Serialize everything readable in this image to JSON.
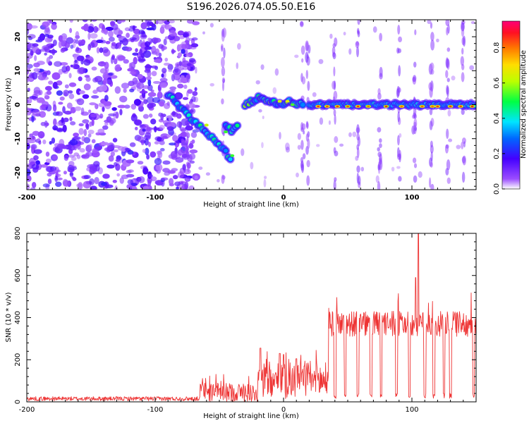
{
  "title": "S196.2026.074.05.50.E16",
  "chart_data": [
    {
      "type": "heatmap",
      "title": "S196.2026.074.05.50.E16",
      "xlabel": "Height of straight line (km)",
      "ylabel": "Frequency (Hz)",
      "xlim": [
        -200,
        150
      ],
      "ylim": [
        -25,
        25
      ],
      "xticks": [
        -200,
        -100,
        0,
        100
      ],
      "yticks": [
        -20,
        -10,
        0,
        10,
        20
      ],
      "colorbar": {
        "label": "Normalized spectral amplitude",
        "range": [
          0.0,
          0.95
        ],
        "ticks": [
          0.0,
          0.2,
          0.4,
          0.6,
          0.8
        ],
        "tick_labels": [
          "0.0",
          "0.2",
          "0.4",
          "0.6",
          "0.8"
        ],
        "colors": [
          "#ffffff",
          "#7f00ff",
          "#0000ff",
          "#00ffff",
          "#00ff00",
          "#ffff00",
          "#ff8000",
          "#ff0000",
          "#ff0080"
        ]
      },
      "features": {
        "noise_region_x": [
          -200,
          -72
        ],
        "descending_ridge": [
          [
            -90,
            3
          ],
          [
            -80,
            -1
          ],
          [
            -70,
            -5
          ],
          [
            -60,
            -8
          ],
          [
            -52,
            -11
          ],
          [
            -45,
            -14
          ],
          [
            -40,
            -17
          ]
        ],
        "secondary_ridge": [
          [
            -45,
            -6
          ],
          [
            -40,
            -8
          ],
          [
            -35,
            -5
          ]
        ],
        "rising_ridge": [
          [
            -30,
            0
          ],
          [
            -20,
            2
          ],
          [
            -10,
            1
          ],
          [
            -5,
            0
          ],
          [
            5,
            1
          ],
          [
            15,
            0
          ]
        ],
        "flat_ridge": [
          [
            20,
            0
          ],
          [
            50,
            0
          ],
          [
            80,
            0
          ],
          [
            110,
            0
          ],
          [
            150,
            0
          ]
        ],
        "vertical_streaks_x": [
          -75,
          -47,
          15,
          19,
          40,
          58,
          75,
          90,
          102,
          115,
          128,
          140
        ]
      }
    },
    {
      "type": "line",
      "xlabel": "Height of straight line (km)",
      "ylabel": "SNR (10 * v/v)",
      "xlim": [
        -200,
        150
      ],
      "ylim": [
        0,
        800
      ],
      "xticks": [
        -200,
        -100,
        0,
        100
      ],
      "yticks": [
        0,
        200,
        400,
        600,
        800
      ],
      "series": [
        {
          "name": "SNR",
          "color": "#ee3333",
          "segments": [
            {
              "x": [
                -200,
                -65
              ],
              "level": 15,
              "noise": 10
            },
            {
              "x": [
                -65,
                -20
              ],
              "level": 45,
              "noise": 45
            },
            {
              "x": [
                -20,
                35
              ],
              "level": 100,
              "noise": 90
            },
            {
              "x": [
                35,
                150
              ],
              "level": 370,
              "noise": 60
            }
          ],
          "peaks": [
            [
              -18,
              255
            ],
            [
              -3,
              230
            ],
            [
              0,
              225
            ],
            [
              10,
              205
            ],
            [
              103,
              590
            ],
            [
              105,
              805
            ]
          ],
          "dropouts_x": [
            40,
            48,
            58,
            68,
            76,
            88,
            98,
            110,
            117,
            125,
            130,
            148
          ]
        }
      ]
    }
  ]
}
